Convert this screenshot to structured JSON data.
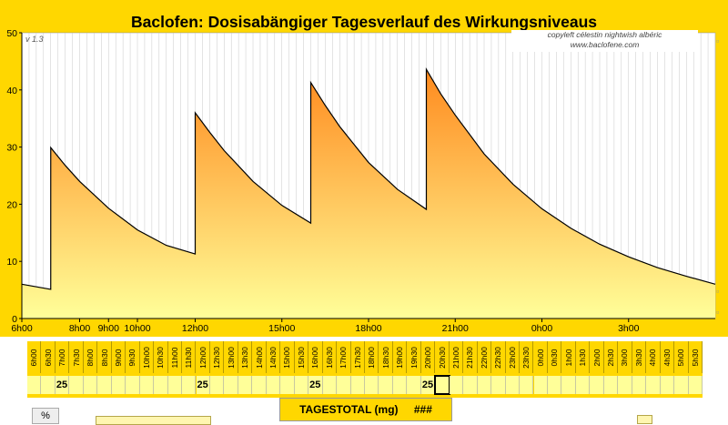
{
  "chart_data": {
    "type": "area",
    "title": "Baclofen: Dosisabängiger Tagesverlauf des Wirkungsniveaus",
    "ylim": [
      0,
      50
    ],
    "y_ticks": [
      0,
      10,
      20,
      30,
      40,
      50
    ],
    "x_ticks": [
      {
        "hours": 0,
        "label": "6h00"
      },
      {
        "hours": 2,
        "label": "8h00"
      },
      {
        "hours": 3,
        "label": "9h00"
      },
      {
        "hours": 4,
        "label": "10h00"
      },
      {
        "hours": 6,
        "label": "12h00"
      },
      {
        "hours": 9,
        "label": "15h00"
      },
      {
        "hours": 12,
        "label": "18h00"
      },
      {
        "hours": 15,
        "label": "21h00"
      },
      {
        "hours": 18,
        "label": "0h00"
      },
      {
        "hours": 21,
        "label": "3h00"
      }
    ],
    "xlim_hours": [
      0,
      24
    ],
    "grid": "vertical",
    "series": [
      {
        "x_hours": [
          0,
          1,
          1.0,
          1.5,
          2,
          3,
          4,
          5,
          6,
          6.0,
          6.5,
          7,
          8,
          9,
          10,
          10.0,
          10.5,
          11,
          12,
          13,
          14,
          14.0,
          14.5,
          15,
          16,
          17,
          18,
          19,
          20,
          21,
          22,
          23,
          24
        ],
        "values": [
          6,
          5.1,
          29.9,
          26.8,
          24.0,
          19.3,
          15.5,
          12.8,
          11.3,
          36.0,
          32.6,
          29.4,
          24.0,
          19.8,
          16.7,
          41.3,
          37.3,
          33.6,
          27.3,
          22.6,
          19.1,
          43.6,
          39.3,
          35.6,
          28.8,
          23.5,
          19.2,
          15.8,
          13.0,
          10.8,
          8.9,
          7.4,
          6.0
        ]
      }
    ],
    "colors": {
      "top": "#ff8a1e",
      "bottom": "#ffff99",
      "line": "#000000",
      "panel": "#ffd700"
    }
  },
  "labels": {
    "version": "v 1.3",
    "copyright_line1": "copyleft célestin nightwish albéric",
    "copyright_line2": "www.baclofene.com",
    "tagestotal_label": "TAGESTOTAL (mg)",
    "tagestotal_value": "###",
    "percent_button": "%"
  },
  "timeline": {
    "times": [
      "6h00",
      "6h30",
      "7h00",
      "7h30",
      "8h00",
      "8h30",
      "9h00",
      "9h30",
      "10h00",
      "10h30",
      "11h00",
      "11h30",
      "12h00",
      "12h30",
      "13h00",
      "13h30",
      "14h00",
      "14h30",
      "15h00",
      "15h30",
      "16h00",
      "16h30",
      "17h00",
      "17h30",
      "18h00",
      "18h30",
      "19h00",
      "19h30",
      "20h00",
      "20h30",
      "21h00",
      "21h30",
      "22h00",
      "22h30",
      "23h00",
      "23h30",
      "0h00",
      "0h30",
      "1h00",
      "1h30",
      "2h00",
      "2h30",
      "3h00",
      "3h30",
      "4h00",
      "4h30",
      "5h00",
      "5h30"
    ],
    "doses": [
      "",
      "",
      "25",
      "",
      "",
      "",
      "",
      "",
      "",
      "",
      "",
      "",
      "25",
      "",
      "",
      "",
      "",
      "",
      "",
      "",
      "25",
      "",
      "",
      "",
      "",
      "",
      "",
      "",
      "25",
      "",
      "",
      "",
      "",
      "",
      "",
      "",
      "",
      "",
      "",
      "",
      "",
      "",
      "",
      "",
      "",
      "",
      "",
      ""
    ],
    "selected_index": 29
  }
}
